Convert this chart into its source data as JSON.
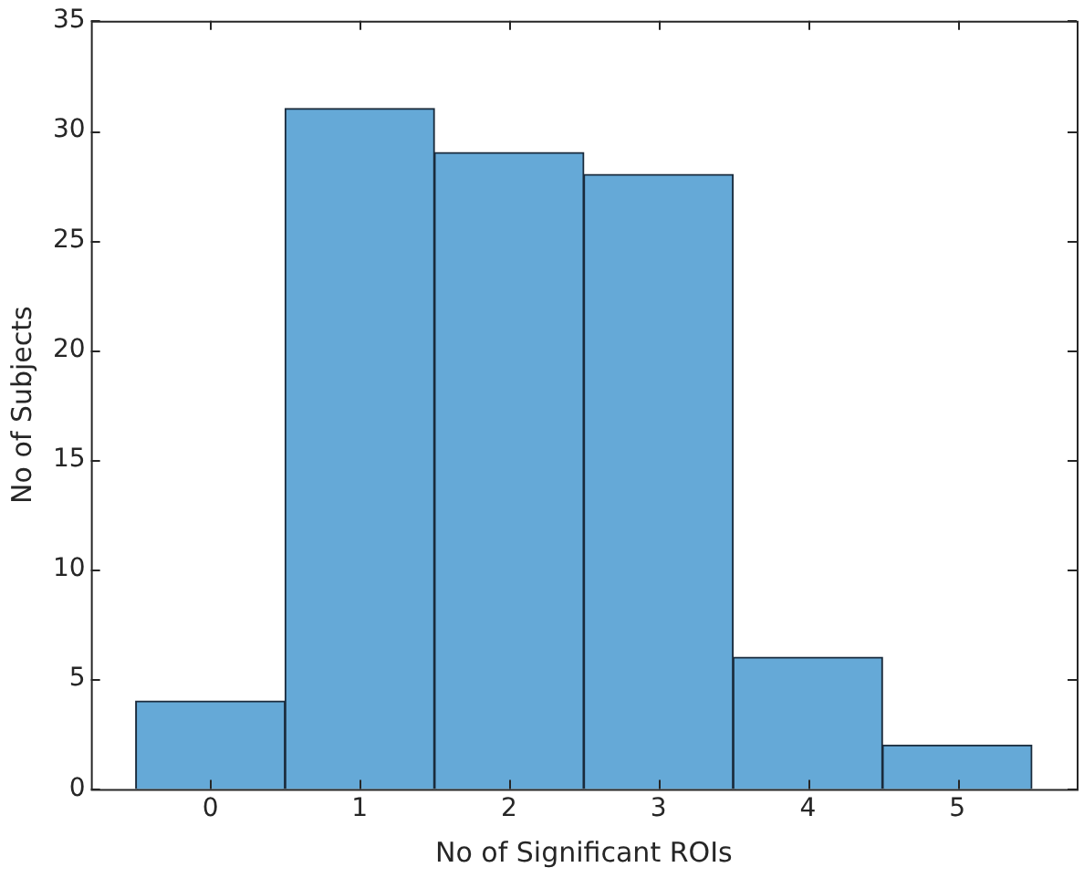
{
  "chart_data": {
    "type": "histogram",
    "xlabel": "No of Significant ROIs",
    "ylabel": "No of Subjects",
    "bins": [
      -0.5,
      0.5,
      1.5,
      2.5,
      3.5,
      4.5,
      5.5
    ],
    "values": [
      4,
      31,
      29,
      28,
      6,
      2
    ],
    "color": "#65a9d7",
    "xlim": [
      -0.8,
      5.8
    ],
    "xticks": [
      0,
      1,
      2,
      3,
      4,
      5
    ],
    "ylim": [
      0,
      35
    ],
    "yticks": [
      0,
      5,
      10,
      15,
      20,
      25,
      30,
      35
    ],
    "grid": false,
    "legend": false
  }
}
